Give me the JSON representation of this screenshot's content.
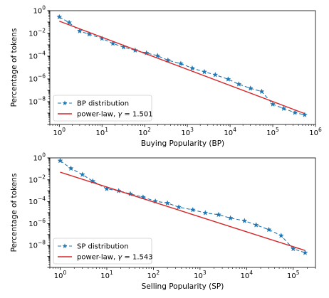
{
  "chart_data": [
    {
      "type": "line",
      "xlabel": "Buying Popularity (BP)",
      "ylabel": "Percentage of tokens",
      "xscale": "log",
      "yscale": "log",
      "xlim": [
        0.6,
        1000000
      ],
      "ylim": [
        1e-10,
        1
      ],
      "xticks": [
        1,
        10,
        100,
        1000,
        10000,
        100000,
        1000000
      ],
      "xtick_labels": [
        {
          "base": "10",
          "exp": "0"
        },
        {
          "base": "10",
          "exp": "1"
        },
        {
          "base": "10",
          "exp": "2"
        },
        {
          "base": "10",
          "exp": "3"
        },
        {
          "base": "10",
          "exp": "4"
        },
        {
          "base": "10",
          "exp": "5"
        },
        {
          "base": "10",
          "exp": "6"
        }
      ],
      "yticks": [
        1,
        0.01,
        0.0001,
        1e-06,
        1e-08
      ],
      "ytick_labels": [
        {
          "base": "10",
          "exp": "0"
        },
        {
          "base": "10",
          "exp": "−2"
        },
        {
          "base": "10",
          "exp": "−4"
        },
        {
          "base": "10",
          "exp": "−6"
        },
        {
          "base": "10",
          "exp": "−8"
        }
      ],
      "legend_position": "lower-left",
      "series": [
        {
          "name": "BP distribution",
          "style": "dashed-star",
          "color": "#1f77b4",
          "x": [
            1,
            1.7,
            3,
            5,
            10,
            18,
            32,
            60,
            110,
            200,
            350,
            700,
            1300,
            2500,
            4500,
            9000,
            16000,
            30000,
            55000,
            100000,
            180000,
            330000,
            560000
          ],
          "y": [
            0.28,
            0.09,
            0.016,
            0.0085,
            0.0036,
            0.0013,
            0.00063,
            0.00033,
            0.00019,
            0.00011,
            4.4e-05,
            2.2e-05,
            8.8e-06,
            4.2e-06,
            2.3e-06,
            9.5e-07,
            3.5e-07,
            1.5e-07,
            7.8e-08,
            6e-09,
            2.5e-09,
            1.1e-09,
            7e-10
          ]
        },
        {
          "name": "power-law, ",
          "gamma_symbol": "γ",
          "gamma_value": "= 1.501",
          "style": "solid",
          "color": "#d62728",
          "x": [
            1,
            560000
          ],
          "y": [
            0.12,
            9e-10
          ]
        }
      ]
    },
    {
      "type": "line",
      "xlabel": "Selling Popularity (SP)",
      "ylabel": "Percentage of tokens",
      "xscale": "log",
      "yscale": "log",
      "xlim": [
        0.6,
        300000
      ],
      "ylim": [
        1e-10,
        1
      ],
      "xticks": [
        1,
        10,
        100,
        1000,
        10000,
        100000
      ],
      "xtick_labels": [
        {
          "base": "10",
          "exp": "0"
        },
        {
          "base": "10",
          "exp": "1"
        },
        {
          "base": "10",
          "exp": "2"
        },
        {
          "base": "10",
          "exp": "3"
        },
        {
          "base": "10",
          "exp": "4"
        },
        {
          "base": "10",
          "exp": "5"
        }
      ],
      "yticks": [
        1,
        0.01,
        0.0001,
        1e-06,
        1e-08
      ],
      "ytick_labels": [
        {
          "base": "10",
          "exp": "0"
        },
        {
          "base": "10",
          "exp": "−2"
        },
        {
          "base": "10",
          "exp": "−4"
        },
        {
          "base": "10",
          "exp": "−6"
        },
        {
          "base": "10",
          "exp": "−8"
        }
      ],
      "legend_position": "lower-left",
      "series": [
        {
          "name": "SP distribution",
          "style": "dashed-star",
          "color": "#1f77b4",
          "x": [
            1,
            1.7,
            3,
            5,
            10,
            18,
            32,
            60,
            110,
            200,
            350,
            700,
            1300,
            2500,
            4500,
            9000,
            16000,
            30000,
            55000,
            100000,
            180000
          ],
          "y": [
            0.55,
            0.11,
            0.03,
            0.0075,
            0.0015,
            0.00098,
            0.00052,
            0.00026,
            0.00011,
            7.5e-05,
            3.2e-05,
            1.8e-05,
            9.5e-06,
            6.5e-06,
            3.2e-06,
            1.8e-06,
            7.5e-07,
            2.8e-07,
            8e-08,
            5e-09,
            2.2e-09
          ]
        },
        {
          "name": "power-law, ",
          "gamma_symbol": "γ",
          "gamma_value": "= 1.543",
          "style": "solid",
          "color": "#d62728",
          "x": [
            1,
            180000
          ],
          "y": [
            0.05,
            3.5e-09
          ]
        }
      ]
    }
  ]
}
